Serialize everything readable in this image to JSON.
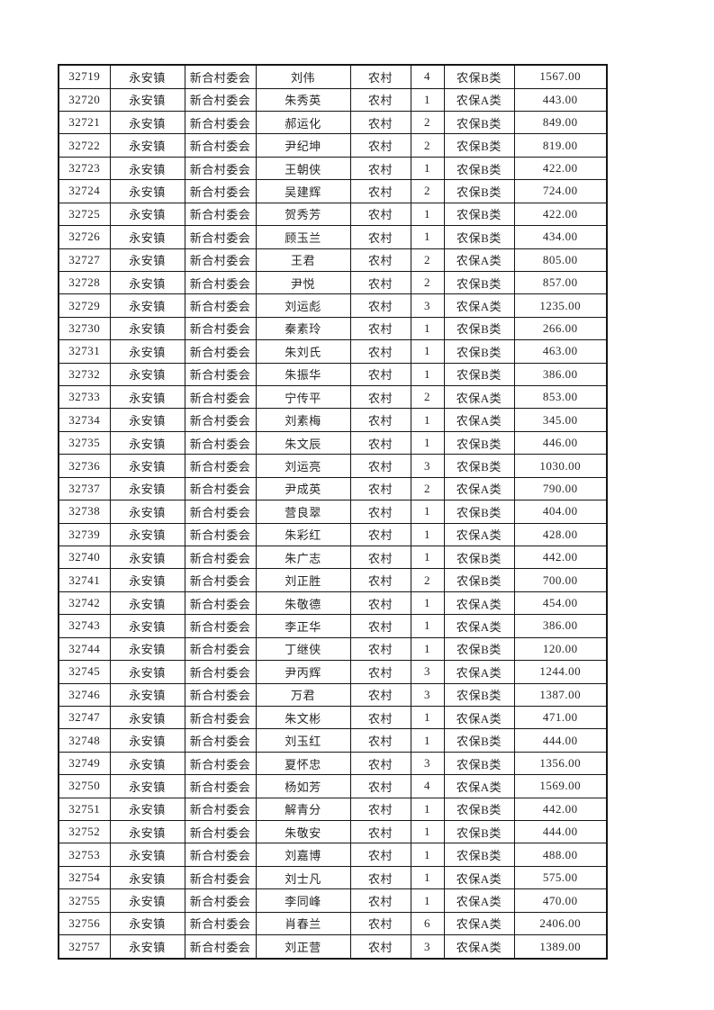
{
  "table": {
    "field_order": [
      "id",
      "town",
      "village",
      "name",
      "residence",
      "count",
      "category",
      "amount"
    ],
    "rows": [
      {
        "id": "32719",
        "town": "永安镇",
        "village": "新合村委会",
        "name": "刘伟",
        "residence": "农村",
        "count": "4",
        "category": "农保B类",
        "amount": "1567.00"
      },
      {
        "id": "32720",
        "town": "永安镇",
        "village": "新合村委会",
        "name": "朱秀英",
        "residence": "农村",
        "count": "1",
        "category": "农保A类",
        "amount": "443.00"
      },
      {
        "id": "32721",
        "town": "永安镇",
        "village": "新合村委会",
        "name": "郝运化",
        "residence": "农村",
        "count": "2",
        "category": "农保B类",
        "amount": "849.00"
      },
      {
        "id": "32722",
        "town": "永安镇",
        "village": "新合村委会",
        "name": "尹纪坤",
        "residence": "农村",
        "count": "2",
        "category": "农保B类",
        "amount": "819.00"
      },
      {
        "id": "32723",
        "town": "永安镇",
        "village": "新合村委会",
        "name": "王朝侠",
        "residence": "农村",
        "count": "1",
        "category": "农保B类",
        "amount": "422.00"
      },
      {
        "id": "32724",
        "town": "永安镇",
        "village": "新合村委会",
        "name": "吴建辉",
        "residence": "农村",
        "count": "2",
        "category": "农保B类",
        "amount": "724.00"
      },
      {
        "id": "32725",
        "town": "永安镇",
        "village": "新合村委会",
        "name": "贺秀芳",
        "residence": "农村",
        "count": "1",
        "category": "农保B类",
        "amount": "422.00"
      },
      {
        "id": "32726",
        "town": "永安镇",
        "village": "新合村委会",
        "name": "顾玉兰",
        "residence": "农村",
        "count": "1",
        "category": "农保B类",
        "amount": "434.00"
      },
      {
        "id": "32727",
        "town": "永安镇",
        "village": "新合村委会",
        "name": "王君",
        "residence": "农村",
        "count": "2",
        "category": "农保A类",
        "amount": "805.00"
      },
      {
        "id": "32728",
        "town": "永安镇",
        "village": "新合村委会",
        "name": "尹悦",
        "residence": "农村",
        "count": "2",
        "category": "农保B类",
        "amount": "857.00"
      },
      {
        "id": "32729",
        "town": "永安镇",
        "village": "新合村委会",
        "name": "刘运彪",
        "residence": "农村",
        "count": "3",
        "category": "农保A类",
        "amount": "1235.00"
      },
      {
        "id": "32730",
        "town": "永安镇",
        "village": "新合村委会",
        "name": "秦素玲",
        "residence": "农村",
        "count": "1",
        "category": "农保B类",
        "amount": "266.00"
      },
      {
        "id": "32731",
        "town": "永安镇",
        "village": "新合村委会",
        "name": "朱刘氏",
        "residence": "农村",
        "count": "1",
        "category": "农保B类",
        "amount": "463.00"
      },
      {
        "id": "32732",
        "town": "永安镇",
        "village": "新合村委会",
        "name": "朱振华",
        "residence": "农村",
        "count": "1",
        "category": "农保B类",
        "amount": "386.00"
      },
      {
        "id": "32733",
        "town": "永安镇",
        "village": "新合村委会",
        "name": "宁传平",
        "residence": "农村",
        "count": "2",
        "category": "农保A类",
        "amount": "853.00"
      },
      {
        "id": "32734",
        "town": "永安镇",
        "village": "新合村委会",
        "name": "刘素梅",
        "residence": "农村",
        "count": "1",
        "category": "农保A类",
        "amount": "345.00"
      },
      {
        "id": "32735",
        "town": "永安镇",
        "village": "新合村委会",
        "name": "朱文辰",
        "residence": "农村",
        "count": "1",
        "category": "农保B类",
        "amount": "446.00"
      },
      {
        "id": "32736",
        "town": "永安镇",
        "village": "新合村委会",
        "name": "刘运亮",
        "residence": "农村",
        "count": "3",
        "category": "农保B类",
        "amount": "1030.00"
      },
      {
        "id": "32737",
        "town": "永安镇",
        "village": "新合村委会",
        "name": "尹成英",
        "residence": "农村",
        "count": "2",
        "category": "农保A类",
        "amount": "790.00"
      },
      {
        "id": "32738",
        "town": "永安镇",
        "village": "新合村委会",
        "name": "营良翠",
        "residence": "农村",
        "count": "1",
        "category": "农保B类",
        "amount": "404.00"
      },
      {
        "id": "32739",
        "town": "永安镇",
        "village": "新合村委会",
        "name": "朱彩红",
        "residence": "农村",
        "count": "1",
        "category": "农保A类",
        "amount": "428.00"
      },
      {
        "id": "32740",
        "town": "永安镇",
        "village": "新合村委会",
        "name": "朱广志",
        "residence": "农村",
        "count": "1",
        "category": "农保B类",
        "amount": "442.00"
      },
      {
        "id": "32741",
        "town": "永安镇",
        "village": "新合村委会",
        "name": "刘正胜",
        "residence": "农村",
        "count": "2",
        "category": "农保B类",
        "amount": "700.00"
      },
      {
        "id": "32742",
        "town": "永安镇",
        "village": "新合村委会",
        "name": "朱敬德",
        "residence": "农村",
        "count": "1",
        "category": "农保A类",
        "amount": "454.00"
      },
      {
        "id": "32743",
        "town": "永安镇",
        "village": "新合村委会",
        "name": "李正华",
        "residence": "农村",
        "count": "1",
        "category": "农保A类",
        "amount": "386.00"
      },
      {
        "id": "32744",
        "town": "永安镇",
        "village": "新合村委会",
        "name": "丁继侠",
        "residence": "农村",
        "count": "1",
        "category": "农保B类",
        "amount": "120.00"
      },
      {
        "id": "32745",
        "town": "永安镇",
        "village": "新合村委会",
        "name": "尹丙辉",
        "residence": "农村",
        "count": "3",
        "category": "农保A类",
        "amount": "1244.00"
      },
      {
        "id": "32746",
        "town": "永安镇",
        "village": "新合村委会",
        "name": "万君",
        "residence": "农村",
        "count": "3",
        "category": "农保B类",
        "amount": "1387.00"
      },
      {
        "id": "32747",
        "town": "永安镇",
        "village": "新合村委会",
        "name": "朱文彬",
        "residence": "农村",
        "count": "1",
        "category": "农保A类",
        "amount": "471.00"
      },
      {
        "id": "32748",
        "town": "永安镇",
        "village": "新合村委会",
        "name": "刘玉红",
        "residence": "农村",
        "count": "1",
        "category": "农保B类",
        "amount": "444.00"
      },
      {
        "id": "32749",
        "town": "永安镇",
        "village": "新合村委会",
        "name": "夏怀忠",
        "residence": "农村",
        "count": "3",
        "category": "农保B类",
        "amount": "1356.00"
      },
      {
        "id": "32750",
        "town": "永安镇",
        "village": "新合村委会",
        "name": "杨如芳",
        "residence": "农村",
        "count": "4",
        "category": "农保A类",
        "amount": "1569.00"
      },
      {
        "id": "32751",
        "town": "永安镇",
        "village": "新合村委会",
        "name": "解青分",
        "residence": "农村",
        "count": "1",
        "category": "农保B类",
        "amount": "442.00"
      },
      {
        "id": "32752",
        "town": "永安镇",
        "village": "新合村委会",
        "name": "朱敬安",
        "residence": "农村",
        "count": "1",
        "category": "农保B类",
        "amount": "444.00"
      },
      {
        "id": "32753",
        "town": "永安镇",
        "village": "新合村委会",
        "name": "刘嘉博",
        "residence": "农村",
        "count": "1",
        "category": "农保B类",
        "amount": "488.00"
      },
      {
        "id": "32754",
        "town": "永安镇",
        "village": "新合村委会",
        "name": "刘士凡",
        "residence": "农村",
        "count": "1",
        "category": "农保A类",
        "amount": "575.00"
      },
      {
        "id": "32755",
        "town": "永安镇",
        "village": "新合村委会",
        "name": "李同峰",
        "residence": "农村",
        "count": "1",
        "category": "农保A类",
        "amount": "470.00"
      },
      {
        "id": "32756",
        "town": "永安镇",
        "village": "新合村委会",
        "name": "肖春兰",
        "residence": "农村",
        "count": "6",
        "category": "农保A类",
        "amount": "2406.00"
      },
      {
        "id": "32757",
        "town": "永安镇",
        "village": "新合村委会",
        "name": "刘正营",
        "residence": "农村",
        "count": "3",
        "category": "农保A类",
        "amount": "1389.00"
      }
    ]
  }
}
